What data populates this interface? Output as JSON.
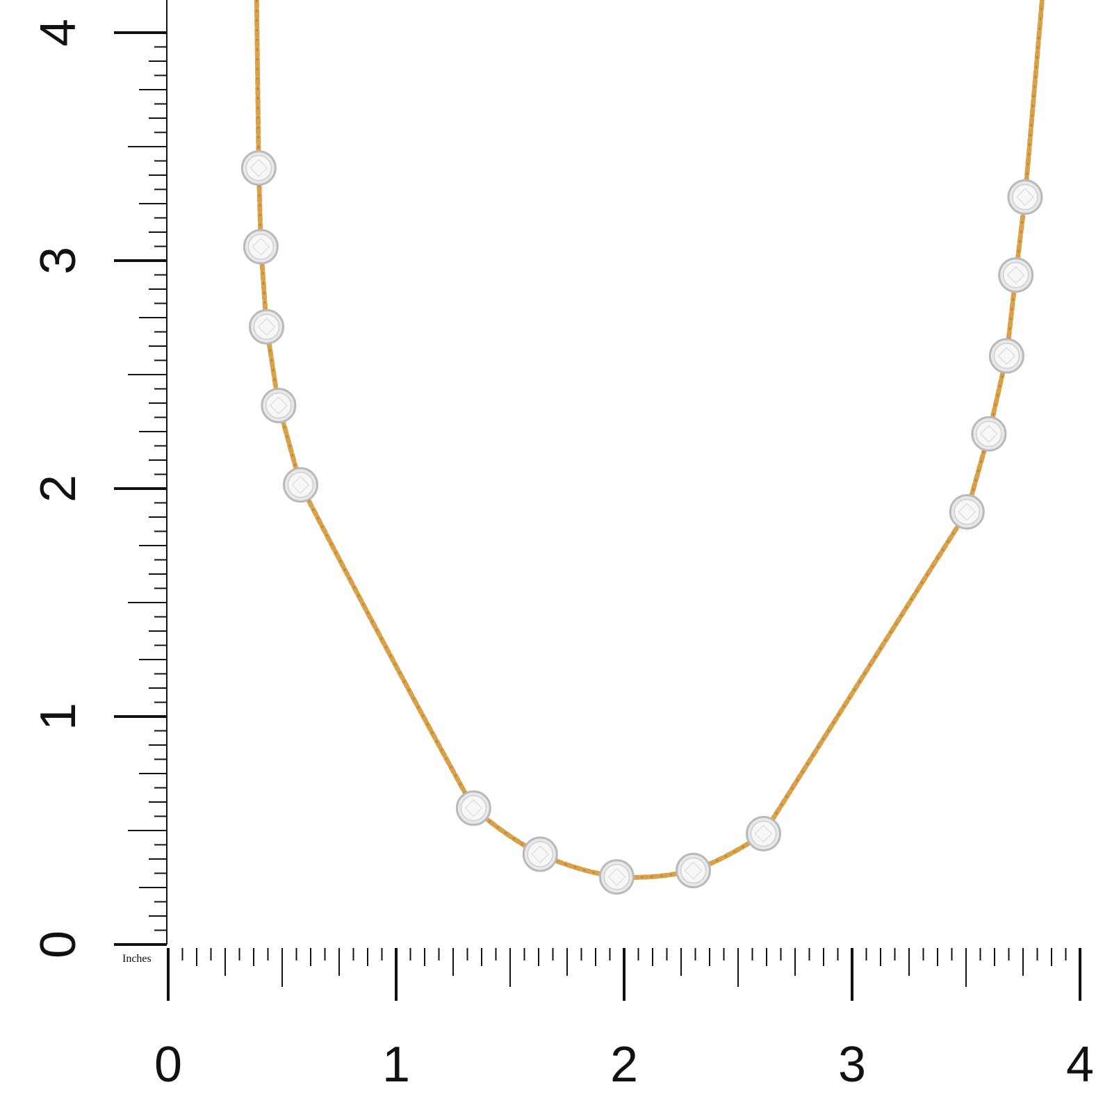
{
  "ruler": {
    "unit_label": "Inches",
    "x_labels": [
      "0",
      "1",
      "2",
      "3",
      "4"
    ],
    "y_labels": [
      "0",
      "1",
      "2",
      "3",
      "4"
    ]
  }
}
